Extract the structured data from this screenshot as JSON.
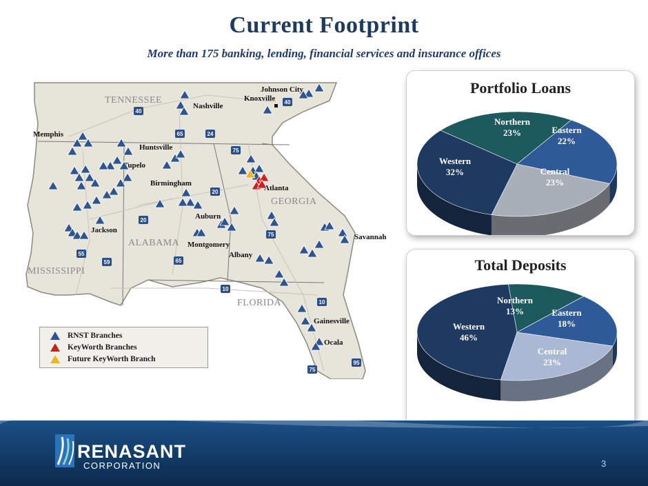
{
  "header": {
    "title": "Current Footprint",
    "subtitle": "More than  175 banking, lending, financial services and insurance offices"
  },
  "map": {
    "states": [
      "TENNESSEE",
      "ALABAMA",
      "GEORGIA",
      "MISSISSIPPI",
      "FLORIDA"
    ],
    "cities": [
      "Johnson City",
      "Knoxville",
      "Nashville",
      "Memphis",
      "Huntsville",
      "Tupelo",
      "Birmingham",
      "Atlanta",
      "Auburn",
      "Jackson",
      "Montgomery",
      "Savannah",
      "Albany",
      "Gainesville",
      "Ocala"
    ],
    "interstates": [
      "40",
      "40",
      "65",
      "24",
      "75",
      "20",
      "20",
      "65",
      "75",
      "55",
      "59",
      "10",
      "10",
      "75",
      "95"
    ]
  },
  "legend": {
    "items": [
      {
        "label": "RNST Branches",
        "color": "#2e5590"
      },
      {
        "label": "KeyWorth Branches",
        "color": "#cc1f1f"
      },
      {
        "label": "Future KeyWorth Branch",
        "color": "#f0b429"
      }
    ]
  },
  "chart_data": [
    {
      "type": "pie",
      "title": "Portfolio Loans",
      "categories": [
        "Northern",
        "Eastern",
        "Central",
        "Western"
      ],
      "values": [
        23,
        22,
        23,
        32
      ],
      "labels": [
        "23%",
        "22%",
        "23%",
        "32%"
      ],
      "colors": [
        "#1c5a5e",
        "#2f5a98",
        "#a9afb8",
        "#1f3a60"
      ]
    },
    {
      "type": "pie",
      "title": "Total Deposits",
      "categories": [
        "Northern",
        "Eastern",
        "Central",
        "Western"
      ],
      "values": [
        13,
        18,
        23,
        46
      ],
      "labels": [
        "13%",
        "18%",
        "23%",
        "46%"
      ],
      "colors": [
        "#1c5a5e",
        "#2f5a98",
        "#aab8d4",
        "#1f3a60"
      ]
    }
  ],
  "footer": {
    "logo_name": "RENASANT",
    "logo_sub": "CORPORATION",
    "page_number": "3"
  }
}
